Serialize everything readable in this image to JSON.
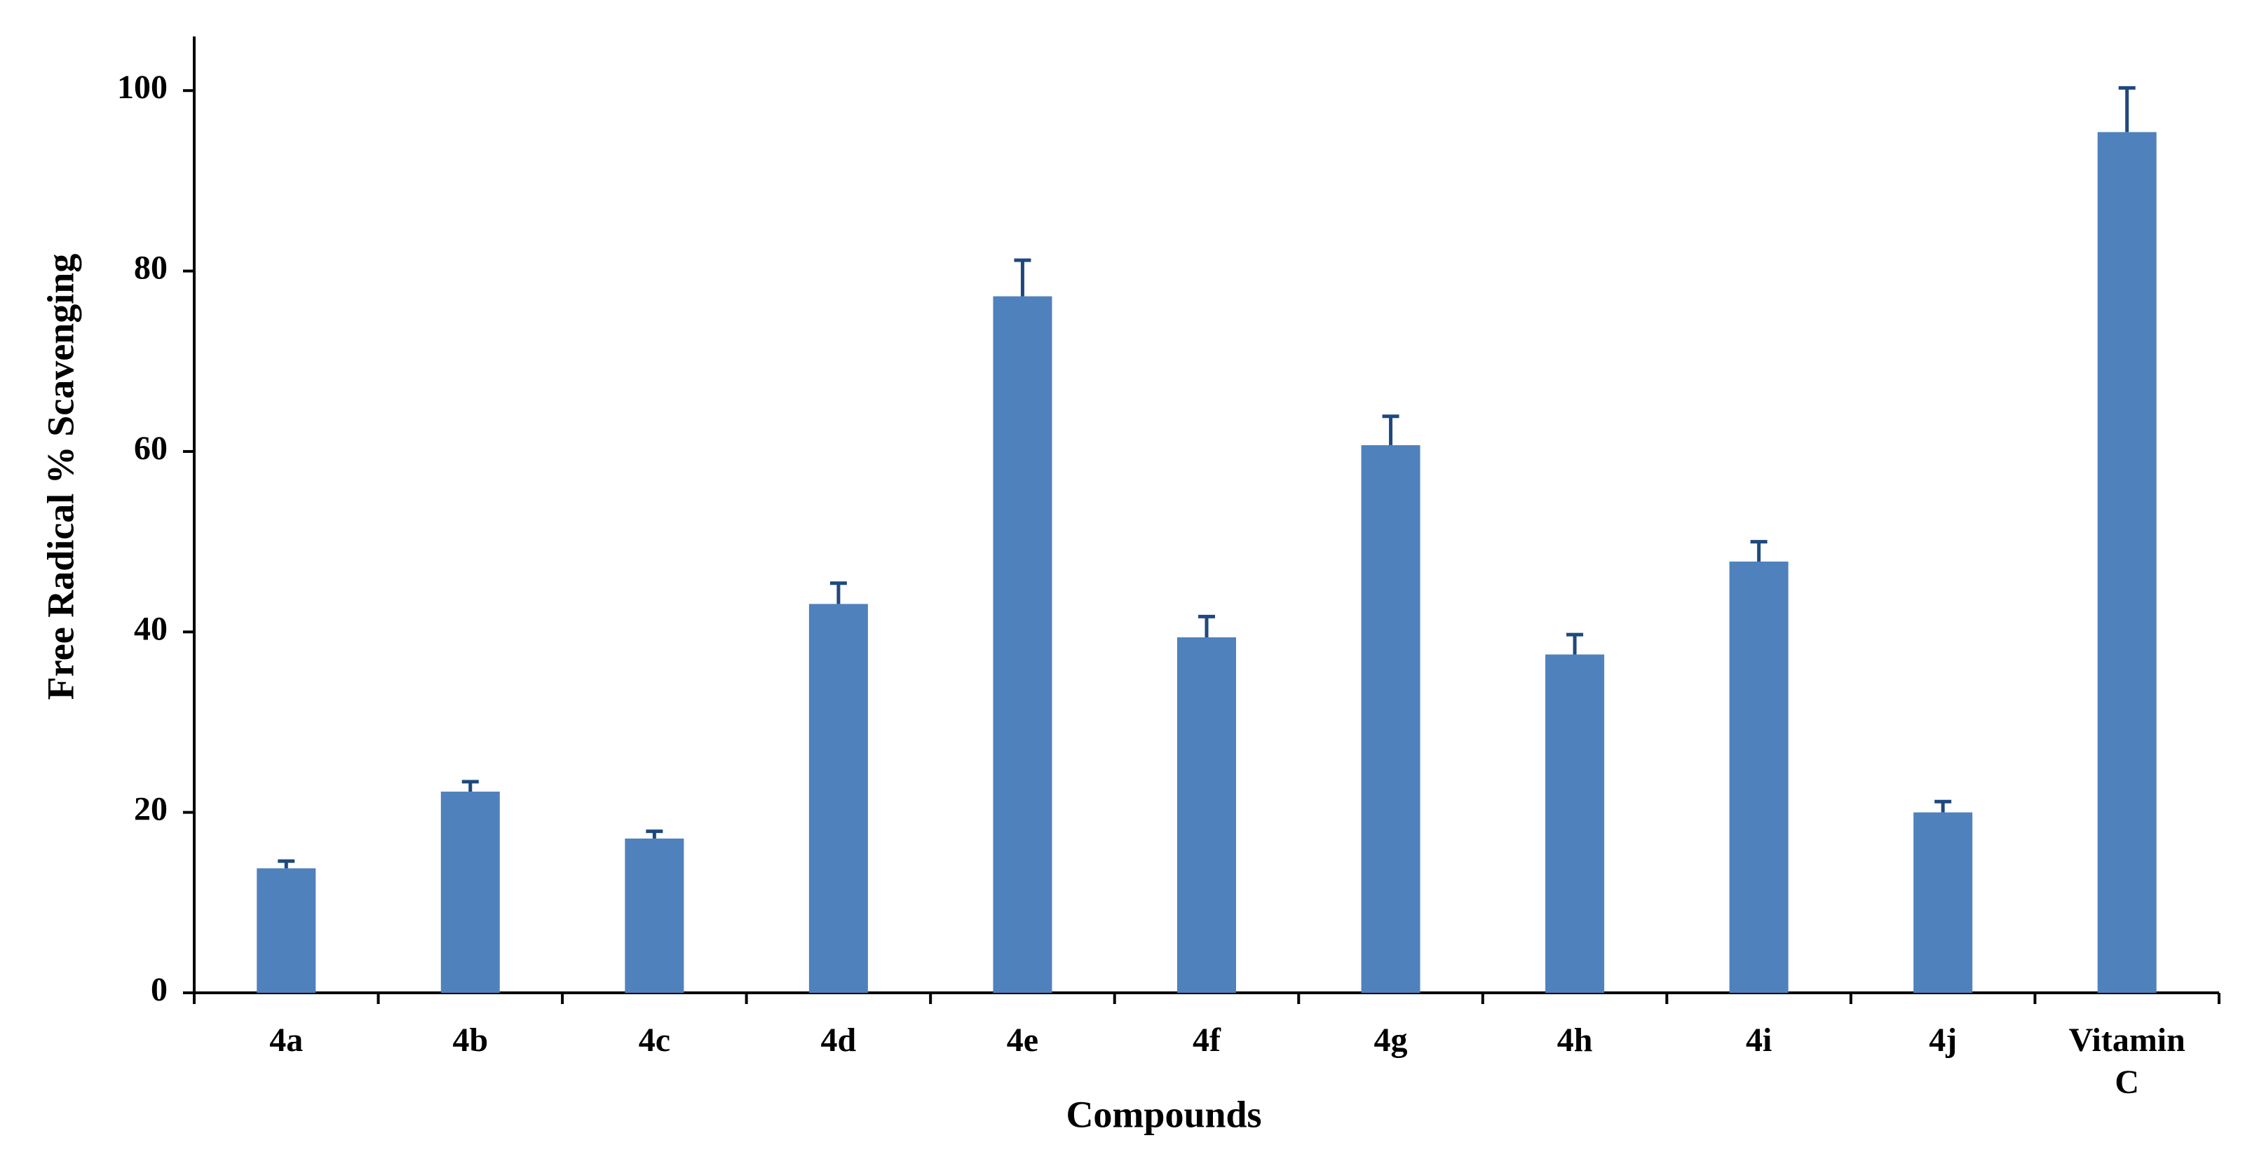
{
  "chart_data": {
    "type": "bar",
    "x_label": "Compounds",
    "y_label": "Free Radical  % Scavenging",
    "categories": [
      "4a",
      "4b",
      "4c",
      "4d",
      "4e",
      "4f",
      "4g",
      "4h",
      "4i",
      "4j",
      "Vitamin C"
    ],
    "values": [
      13.8,
      22.3,
      17.1,
      43.1,
      77.2,
      39.4,
      60.7,
      37.5,
      47.8,
      20.0,
      95.4
    ],
    "errors": [
      0.8,
      1.1,
      0.8,
      2.3,
      4.0,
      2.3,
      3.2,
      2.2,
      2.2,
      1.2,
      4.9
    ],
    "color": "#4f81bd",
    "error_color": "#1f497d",
    "ylim": [
      0,
      106
    ],
    "yticks": [
      0,
      20,
      40,
      60,
      80,
      100
    ],
    "grid": false
  }
}
